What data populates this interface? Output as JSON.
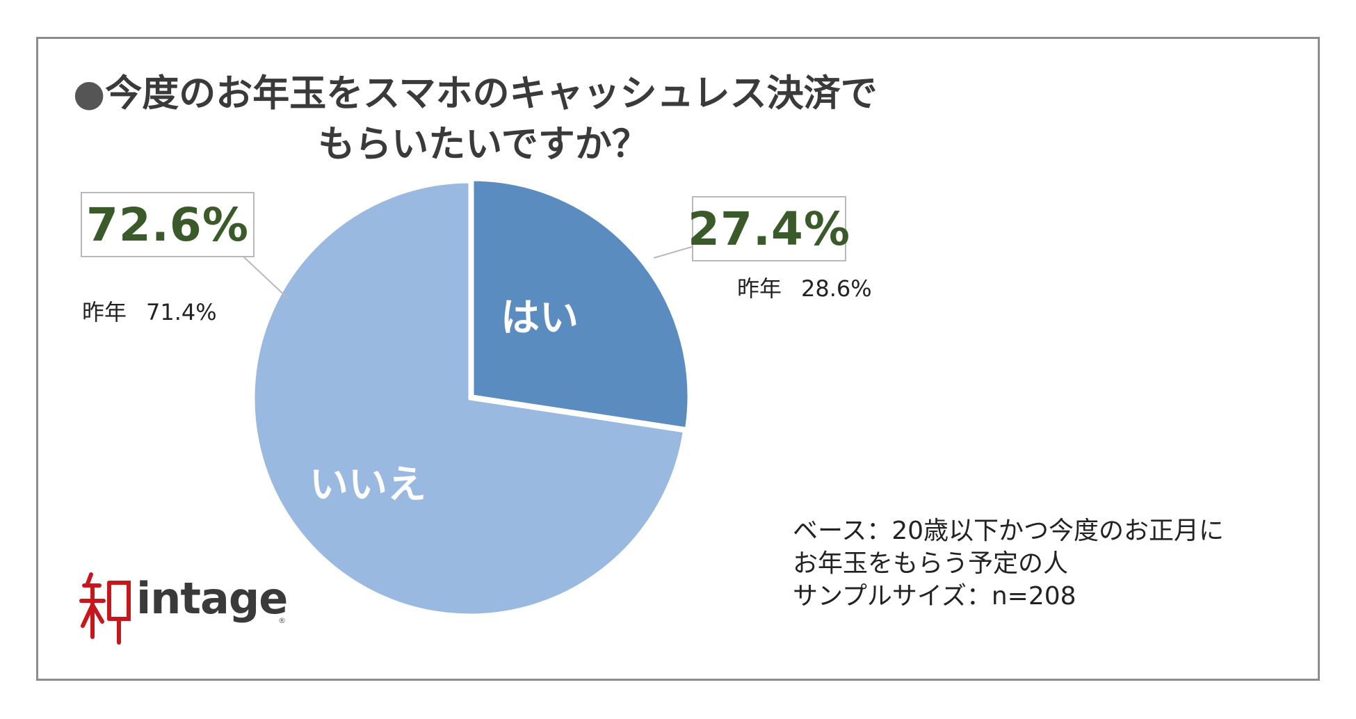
{
  "title": {
    "line1": "今度のお年玉をスマホのキャッシュレス決済で",
    "line2": "もらいたいですか？"
  },
  "chart_data": {
    "type": "pie",
    "start_angle": "12 o'clock",
    "direction": "clockwise",
    "slices": [
      {
        "label": "はい",
        "value": 27.4,
        "value_label": "27.4%",
        "previous_year_label": "昨年",
        "previous_year_value": "28.6%",
        "color": "#5b8cbf"
      },
      {
        "label": "いいえ",
        "value": 72.6,
        "value_label": "72.6%",
        "previous_year_label": "昨年",
        "previous_year_value": "71.4%",
        "color": "#9ab9e1"
      }
    ],
    "emphasis": "はい slice exploded",
    "value_label_color": "#3b5a2a"
  },
  "note": {
    "line1": "ベース：20歳以下かつ今度のお正月に",
    "line2": "お年玉をもらう予定の人",
    "line3": "サンプルサイズ：n=208"
  },
  "logo": {
    "text": "intage",
    "registered": "®",
    "mark_color": "#c8161d"
  }
}
